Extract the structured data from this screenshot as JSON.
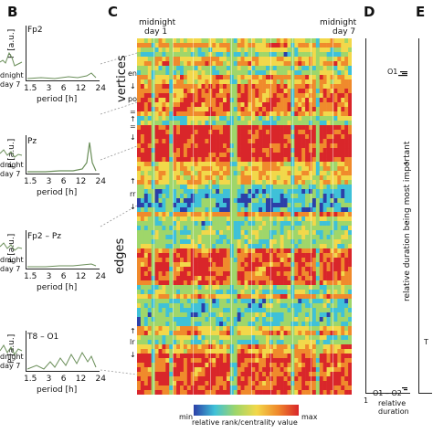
{
  "panels": {
    "B": "B",
    "C": "C",
    "D": "D",
    "E": "E"
  },
  "panel_b": {
    "plots": [
      {
        "channel": "Fp2",
        "ylabel": "P [a.u.]",
        "left_label_top": "dnight",
        "left_label_bottom": "day 7"
      },
      {
        "channel": "Pz",
        "ylabel": "P [a.u.]",
        "left_label_top": "dnight",
        "left_label_bottom": "day 7"
      },
      {
        "channel": "Fp2 – Pz",
        "ylabel": "P [a.u.]",
        "left_label_top": "dnight",
        "left_label_bottom": "day 7"
      },
      {
        "channel": "T8 – O1",
        "ylabel": "P [a.u.]",
        "left_label_top": "dnight",
        "left_label_bottom": "day 7"
      }
    ],
    "ticks": [
      "1.5",
      "3",
      "6",
      "12",
      "24"
    ],
    "xlabel": "period [h]"
  },
  "panel_c": {
    "top_left_label_1": "midnight",
    "top_left_label_2": "day 1",
    "top_right_label_1": "midnight",
    "top_right_label_2": "day 7",
    "vertices_label": "vertices",
    "edges_label": "edges",
    "side_marks": [
      "ent",
      "↓",
      "post",
      "=",
      "↑",
      "=",
      "↓",
      "↑",
      "rr",
      "↓",
      "↑",
      "lr",
      "↓"
    ],
    "colorbar_min": "min",
    "colorbar_max": "max",
    "colorbar_label": "relative rank/centrality value"
  },
  "panel_d": {
    "label_top": "O1",
    "label_bottom": "O1 – O2",
    "axis_label": "relative duration being most important",
    "xtick": "1",
    "xlabel_1": "relative",
    "xlabel_2": "duration"
  },
  "panel_e": {
    "label": "T"
  },
  "colors": {
    "blue": "#2c3fa8",
    "cyan": "#3fc1d8",
    "green": "#9fd66a",
    "yellow": "#f2d84a",
    "orange": "#f08a2c",
    "red": "#d9262a"
  }
}
